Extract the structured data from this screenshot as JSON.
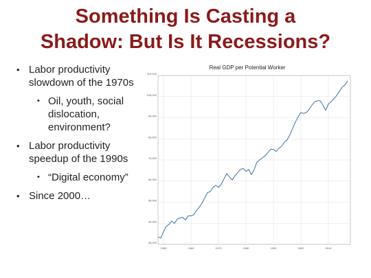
{
  "slide": {
    "title_line1": "Something Is Casting a",
    "title_line2": "Shadow: But Is It Recessions?",
    "title_color": "#8b1a1a",
    "bullets": [
      {
        "level": 1,
        "text": "Labor productivity slowdown of the 1970s"
      },
      {
        "level": 2,
        "text": "Oil, youth, social dislocation, environment?"
      },
      {
        "level": 1,
        "text": "Labor productivity speedup of the 1990s"
      },
      {
        "level": 2,
        "text": "“Digital economy”"
      },
      {
        "level": 1,
        "text": "Since 2000…"
      }
    ]
  },
  "chart_data": {
    "type": "line",
    "title": "Real GDP per Potential Worker",
    "xlabel": "",
    "ylabel": "",
    "xlim": [
      1948,
      2018
    ],
    "ylim": [
      30000,
      110000
    ],
    "grid": true,
    "x_ticks": [
      1950,
      1960,
      1970,
      1980,
      1990,
      2000,
      2010
    ],
    "y_ticks": [
      30000,
      40000,
      50000,
      60000,
      70000,
      80000,
      90000,
      100000,
      110000
    ],
    "y_tick_labels": [
      "30,000",
      "40,000",
      "50,000",
      "60,000",
      "70,000",
      "80,000",
      "90,000",
      "100,000",
      "110,000"
    ],
    "line_color": "#3a6ea5",
    "series": [
      {
        "x": [
          1948,
          1949,
          1950,
          1951,
          1952,
          1953,
          1954,
          1955,
          1956,
          1957,
          1958,
          1959,
          1960,
          1961,
          1962,
          1963,
          1964,
          1965,
          1966,
          1967,
          1968,
          1969,
          1970,
          1971,
          1972,
          1973,
          1974,
          1975,
          1976,
          1977,
          1978,
          1979,
          1980,
          1981,
          1982,
          1983,
          1984,
          1985,
          1986,
          1987,
          1988,
          1989,
          1990,
          1991,
          1992,
          1993,
          1994,
          1995,
          1996,
          1997,
          1998,
          1999,
          2000,
          2001,
          2002,
          2003,
          2004,
          2005,
          2006,
          2007,
          2008,
          2009,
          2010,
          2011,
          2012,
          2013,
          2014,
          2015,
          2016,
          2017
        ],
        "values": [
          33500,
          33000,
          36000,
          38500,
          39500,
          41000,
          40000,
          42000,
          42500,
          42800,
          41500,
          43500,
          43500,
          44000,
          46000,
          47500,
          49500,
          52000,
          54500,
          55000,
          57000,
          58000,
          57000,
          58500,
          61000,
          63500,
          62000,
          60500,
          62500,
          64000,
          65500,
          66000,
          64500,
          65500,
          63000,
          65500,
          69000,
          70000,
          71000,
          72000,
          73500,
          75000,
          75000,
          74000,
          75500,
          76500,
          78500,
          79500,
          82000,
          85000,
          88000,
          90500,
          92500,
          92000,
          92500,
          94000,
          96000,
          97500,
          98000,
          98000,
          96000,
          93500,
          96500,
          97500,
          99000,
          100500,
          102500,
          104500,
          105500,
          107500
        ]
      }
    ]
  }
}
